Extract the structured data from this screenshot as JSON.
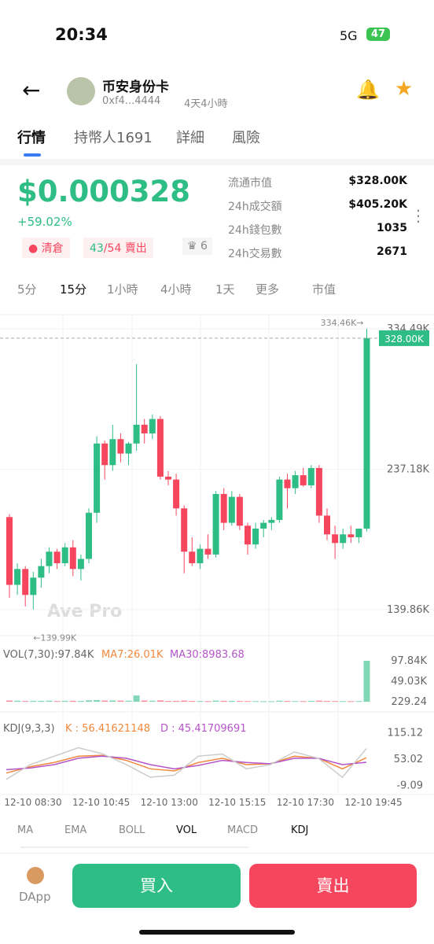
{
  "status": {
    "time": "20:34",
    "network": "5G",
    "battery": "47"
  },
  "header": {
    "name": "币安身份卡",
    "address": "0xf4...4444",
    "age": "4天4小時"
  },
  "tabs": [
    "行情",
    "持幣人1691",
    "詳細",
    "風險"
  ],
  "price": {
    "value": "$0.000328",
    "change": "+59.02%"
  },
  "tags": {
    "clear": "清倉",
    "buys": "43",
    "sells": "/54",
    "sell_label": "賣出",
    "more": "6"
  },
  "stats": [
    [
      "流通市值",
      "$328.00K"
    ],
    [
      "24h成交額",
      "$405.20K"
    ],
    [
      "24h錢包數",
      "1035"
    ],
    [
      "24h交易數",
      "2671"
    ]
  ],
  "intervals": [
    "5分",
    "15分",
    "1小時",
    "4小時",
    "1天",
    "更多",
    "市值"
  ],
  "chart_data": {
    "type": "candlestick",
    "up_color": "#2ebd85",
    "down_color": "#f6465d",
    "ylim": [
      121800,
      344300
    ],
    "yticks": [
      {
        "value": 334490,
        "label": "334.49K"
      },
      {
        "value": 237180,
        "label": "237.18K"
      },
      {
        "value": 139860,
        "label": "139.86K"
      }
    ],
    "high_label": "334.46K→",
    "low_label": "←139.99K",
    "last_label": "328.00K",
    "watermark": "Ave Pro",
    "candles": {
      "open": [
        204000,
        157000,
        168000,
        150000,
        162000,
        170000,
        180000,
        172000,
        183000,
        168000,
        175000,
        207000,
        255000,
        240000,
        258000,
        248000,
        255000,
        268000,
        262000,
        272000,
        232000,
        230000,
        210000,
        180000,
        172000,
        182000,
        178000,
        220000,
        200000,
        218000,
        198000,
        185000,
        196000,
        200000,
        202000,
        230000,
        224000,
        233000,
        226000,
        238000,
        205000,
        192000,
        186000,
        192000,
        190000,
        196000
      ],
      "high": [
        206000,
        172000,
        170000,
        166000,
        175000,
        183000,
        182000,
        186000,
        188000,
        178000,
        210000,
        260000,
        257000,
        268000,
        262000,
        256000,
        310000,
        272000,
        275000,
        274000,
        236000,
        234000,
        212000,
        190000,
        185000,
        192000,
        222000,
        224000,
        222000,
        220000,
        200000,
        200000,
        202000,
        204000,
        232000,
        234000,
        236000,
        238000,
        240000,
        240000,
        210000,
        198000,
        196000,
        198000,
        196000,
        334460
      ],
      "low": [
        148000,
        150000,
        142000,
        139990,
        155000,
        165000,
        168000,
        170000,
        163000,
        160000,
        172000,
        200000,
        230000,
        236000,
        242000,
        240000,
        250000,
        255000,
        258000,
        230000,
        226000,
        205000,
        165000,
        170000,
        168000,
        175000,
        176000,
        195000,
        198000,
        195000,
        178000,
        182000,
        190000,
        195000,
        200000,
        210000,
        220000,
        225000,
        224000,
        200000,
        188000,
        175000,
        182000,
        186000,
        186000,
        194000
      ],
      "close": [
        157000,
        168000,
        150000,
        162000,
        170000,
        180000,
        172000,
        183000,
        168000,
        175000,
        207000,
        255000,
        240000,
        258000,
        248000,
        255000,
        268000,
        262000,
        272000,
        232000,
        230000,
        210000,
        180000,
        172000,
        182000,
        178000,
        220000,
        200000,
        218000,
        198000,
        185000,
        196000,
        200000,
        202000,
        230000,
        224000,
        233000,
        226000,
        238000,
        205000,
        192000,
        186000,
        192000,
        190000,
        196000,
        328000
      ]
    },
    "volume": {
      "legend": "VOL(7,30):97.84K",
      "ma7": "MA7:26.01K",
      "ma30": "MA30:8983.68",
      "color_up": "#2ebd85",
      "color_down": "#f6465d",
      "values": [
        3000,
        2500,
        2000,
        2200,
        2400,
        2600,
        1800,
        2300,
        2500,
        2000,
        3500,
        4200,
        3000,
        3200,
        2800,
        2600,
        15000,
        3000,
        2500,
        3400,
        2000,
        2200,
        3000,
        2000,
        1800,
        1600,
        2800,
        2400,
        2200,
        2000,
        1800,
        1600,
        1500,
        1400,
        2600,
        2000,
        1800,
        1700,
        2200,
        2800,
        2000,
        1800,
        1600,
        1500,
        1700,
        97840
      ],
      "ylim": [
        -24170,
        116610
      ],
      "yticks": [
        {
          "value": 97840,
          "label": "97.84K"
        },
        {
          "value": 49030,
          "label": "49.03K"
        },
        229.24
      ]
    },
    "kdj": {
      "legend": "KDJ(9,3,3)",
      "k_label": "K : 56.41621148",
      "d_label": "D : 45.41709691",
      "ylim": [
        -31,
        140.7
      ],
      "yticks": [
        115.12,
        53.02,
        -9.09
      ],
      "series": [
        {
          "color": "#f0883e",
          "values": [
            20,
            35,
            45,
            60,
            62,
            50,
            30,
            25,
            45,
            55,
            40,
            42,
            60,
            55,
            30,
            56.42
          ]
        },
        {
          "color": "#b455c8",
          "values": [
            28,
            32,
            40,
            55,
            60,
            55,
            40,
            30,
            38,
            50,
            45,
            42,
            55,
            55,
            40,
            45.42
          ]
        },
        {
          "color": "#cccccc",
          "values": [
            5,
            40,
            60,
            80,
            66,
            40,
            10,
            15,
            60,
            65,
            30,
            40,
            70,
            55,
            10,
            78
          ]
        }
      ]
    },
    "x_labels": [
      "12-10 08:30",
      "12-10 10:45",
      "12-10 13:00",
      "12-10 15:15",
      "12-10 17:30",
      "12-10 19:45"
    ]
  },
  "indicators": [
    "MA",
    "EMA",
    "BOLL",
    "VOL",
    "MACD",
    "KDJ"
  ],
  "bottom": {
    "dapp": "DApp",
    "buy": "買入",
    "sell": "賣出"
  }
}
